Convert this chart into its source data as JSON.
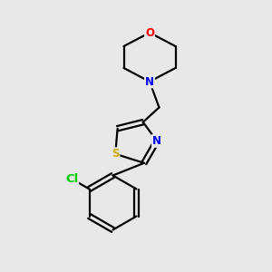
{
  "background_color": "#e8e8e8",
  "bond_color": "#000000",
  "atom_colors": {
    "O": "#ff0000",
    "N": "#0000ff",
    "S": "#ccaa00",
    "Cl": "#00cc00",
    "C": "#000000"
  },
  "font_size": 8.5,
  "line_width": 1.6
}
